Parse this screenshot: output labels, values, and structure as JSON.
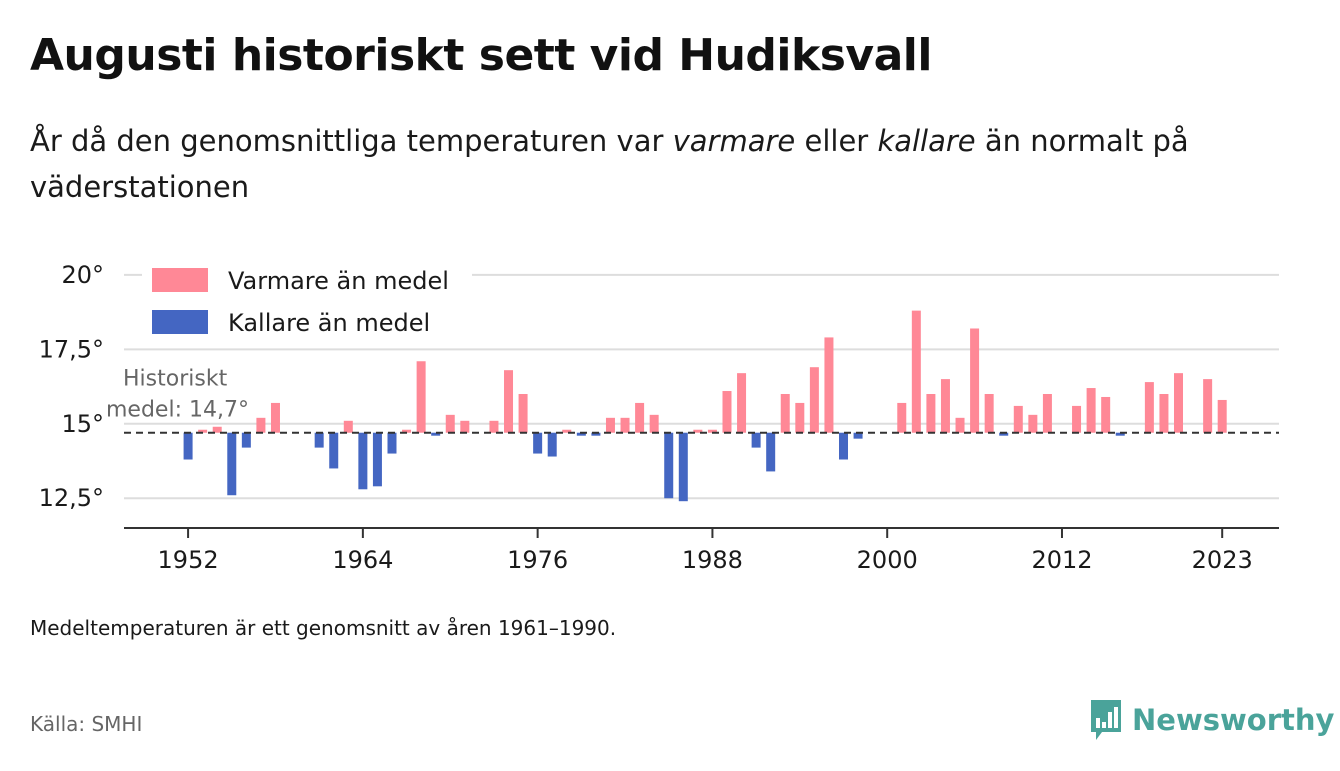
{
  "title": "Augusti historiskt sett vid Hudiksvall",
  "subtitle": {
    "part1": "År då den genomsnittliga temperaturen var ",
    "warm": "varmare",
    "part2": " eller ",
    "cold": "kallare",
    "part3": " än normalt på väderstationen"
  },
  "note": "Medeltemperaturen är ett genomsnitt av åren 1961–1990.",
  "source": "Källa: SMHI",
  "brand": {
    "name": "Newsworthy",
    "color": "#4aa39a",
    "icon": "bar-chart-logo-icon"
  },
  "colors": {
    "warm": "#ff8896",
    "cold": "#4466c2",
    "grid": "#dddddd",
    "axis": "#333333"
  },
  "chart_data": {
    "type": "bar",
    "baseline": 14.7,
    "baseline_label_line1": "Historiskt",
    "baseline_label_line2": "medel: 14,7°",
    "ylim": [
      11.5,
      20.5
    ],
    "yticks": [
      {
        "value": 12.5,
        "label": "12,5°"
      },
      {
        "value": 15,
        "label": "15°"
      },
      {
        "value": 17.5,
        "label": "17,5°"
      },
      {
        "value": 20,
        "label": "20°"
      }
    ],
    "xlim": [
      1947.6,
      2026.9
    ],
    "xticks": [
      {
        "value": 1952,
        "label": "1952"
      },
      {
        "value": 1964,
        "label": "1964"
      },
      {
        "value": 1976,
        "label": "1976"
      },
      {
        "value": 1988,
        "label": "1988"
      },
      {
        "value": 2000,
        "label": "2000"
      },
      {
        "value": 2012,
        "label": "2012"
      },
      {
        "value": 2023,
        "label": "2023"
      }
    ],
    "legend": {
      "position": "top-left",
      "warm_label": "Varmare än medel",
      "cold_label": "Kallare än medel"
    },
    "x": [
      1952,
      1953,
      1954,
      1955,
      1956,
      1957,
      1958,
      1961,
      1962,
      1963,
      1964,
      1965,
      1966,
      1967,
      1968,
      1969,
      1970,
      1971,
      1973,
      1974,
      1975,
      1976,
      1977,
      1978,
      1979,
      1980,
      1981,
      1982,
      1983,
      1984,
      1985,
      1986,
      1987,
      1988,
      1989,
      1990,
      1991,
      1992,
      1993,
      1994,
      1995,
      1996,
      1997,
      1998,
      2001,
      2002,
      2003,
      2004,
      2005,
      2006,
      2007,
      2008,
      2009,
      2010,
      2011,
      2013,
      2014,
      2015,
      2016,
      2018,
      2019,
      2020,
      2022,
      2023
    ],
    "values": [
      13.8,
      14.8,
      14.9,
      12.6,
      14.2,
      15.2,
      15.7,
      14.2,
      13.5,
      15.1,
      12.8,
      12.9,
      14.0,
      14.8,
      17.1,
      14.6,
      15.3,
      15.1,
      15.1,
      16.8,
      16.0,
      14.0,
      13.9,
      14.8,
      14.6,
      14.6,
      15.2,
      15.2,
      15.7,
      15.3,
      12.5,
      12.4,
      14.8,
      14.8,
      16.1,
      16.7,
      14.2,
      13.4,
      16.0,
      15.7,
      16.9,
      17.9,
      13.8,
      14.5,
      15.7,
      18.8,
      16.0,
      16.5,
      15.2,
      18.2,
      16.0,
      14.6,
      15.6,
      15.3,
      16.0,
      15.6,
      16.2,
      15.9,
      14.6,
      16.4,
      16.0,
      16.7,
      16.5,
      15.8
    ]
  }
}
